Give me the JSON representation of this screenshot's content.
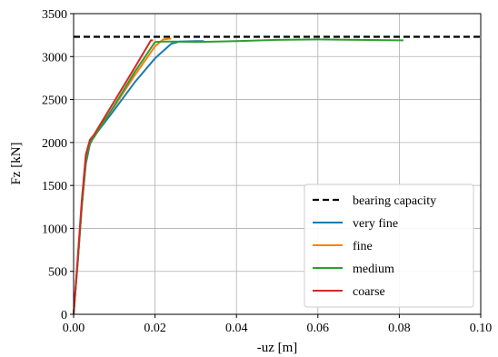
{
  "chart_data": {
    "type": "line",
    "xlabel": "-uz [m]",
    "ylabel": "Fz [kN]",
    "xlim": [
      0.0,
      0.1
    ],
    "ylim": [
      0,
      3500
    ],
    "x_ticks": [
      0.0,
      0.02,
      0.04,
      0.06,
      0.08,
      0.1
    ],
    "x_tick_labels": [
      "0.00",
      "0.02",
      "0.04",
      "0.06",
      "0.08",
      "0.10"
    ],
    "y_ticks": [
      0,
      500,
      1000,
      1500,
      2000,
      2500,
      3000,
      3500
    ],
    "y_tick_labels": [
      "0",
      "500",
      "1000",
      "1500",
      "2000",
      "2500",
      "3000",
      "3500"
    ],
    "grid": true,
    "legend_position": "bottom-right",
    "reference_lines": [
      {
        "name": "bearing capacity",
        "y": 3230,
        "color": "#000000",
        "style": "dashed"
      }
    ],
    "series": [
      {
        "name": "very fine",
        "color": "#1f77b4",
        "x": [
          0.0,
          0.001,
          0.002,
          0.003,
          0.004,
          0.005,
          0.01,
          0.015,
          0.02,
          0.024,
          0.026,
          0.03,
          0.032
        ],
        "y": [
          0,
          600,
          1250,
          1750,
          1980,
          2070,
          2380,
          2700,
          2980,
          3150,
          3175,
          3180,
          3180
        ]
      },
      {
        "name": "fine",
        "color": "#ff7f0e",
        "x": [
          0.0,
          0.001,
          0.002,
          0.003,
          0.004,
          0.005,
          0.01,
          0.015,
          0.02,
          0.022,
          0.024
        ],
        "y": [
          0,
          600,
          1250,
          1780,
          2010,
          2080,
          2420,
          2780,
          3120,
          3200,
          3210
        ]
      },
      {
        "name": "medium",
        "color": "#2ca02c",
        "x": [
          0.0,
          0.001,
          0.002,
          0.003,
          0.004,
          0.005,
          0.01,
          0.015,
          0.02,
          0.022,
          0.025,
          0.03,
          0.04,
          0.05,
          0.06,
          0.07,
          0.08,
          0.081
        ],
        "y": [
          0,
          600,
          1250,
          1780,
          2000,
          2060,
          2430,
          2820,
          3170,
          3175,
          3175,
          3170,
          3180,
          3195,
          3200,
          3195,
          3190,
          3190
        ]
      },
      {
        "name": "coarse",
        "color": "#d62728",
        "x": [
          0.0,
          0.001,
          0.002,
          0.003,
          0.004,
          0.005,
          0.01,
          0.015,
          0.019,
          0.0195
        ],
        "y": [
          0,
          650,
          1320,
          1860,
          2030,
          2090,
          2480,
          2870,
          3190,
          3190
        ]
      }
    ]
  }
}
